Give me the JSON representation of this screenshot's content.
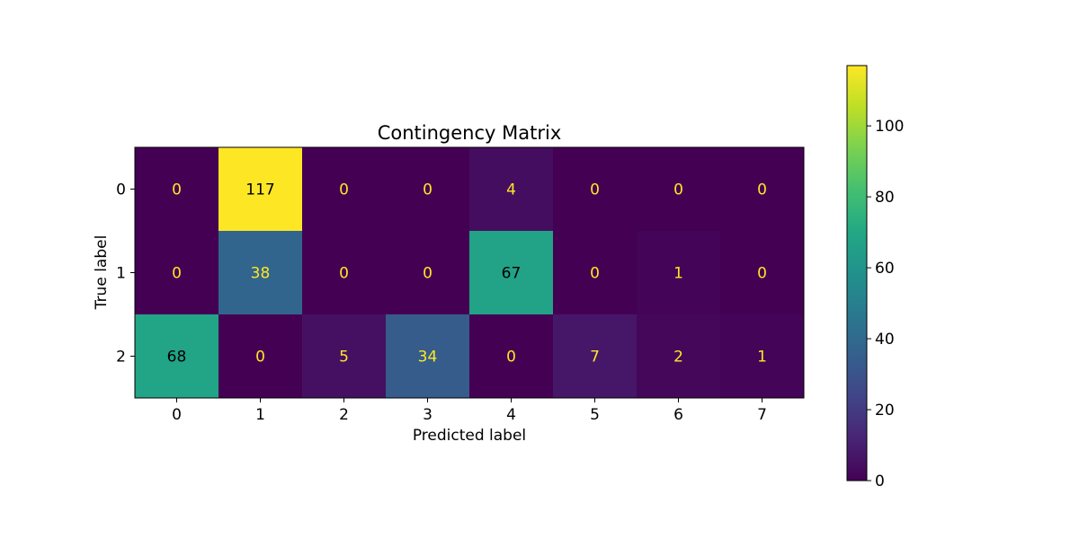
{
  "chart_data": {
    "type": "heatmap",
    "title": "Contingency Matrix",
    "xlabel": "Predicted label",
    "ylabel": "True label",
    "x_categories": [
      "0",
      "1",
      "2",
      "3",
      "4",
      "5",
      "6",
      "7"
    ],
    "y_categories": [
      "0",
      "1",
      "2"
    ],
    "values": [
      [
        0,
        117,
        0,
        0,
        4,
        0,
        0,
        0
      ],
      [
        0,
        38,
        0,
        0,
        67,
        0,
        1,
        0
      ],
      [
        68,
        0,
        5,
        34,
        0,
        7,
        2,
        1
      ]
    ],
    "colormap": "viridis",
    "vmin": 0,
    "vmax": 117,
    "colorbar_ticks": [
      0,
      20,
      40,
      60,
      80,
      100
    ],
    "grid": false
  }
}
